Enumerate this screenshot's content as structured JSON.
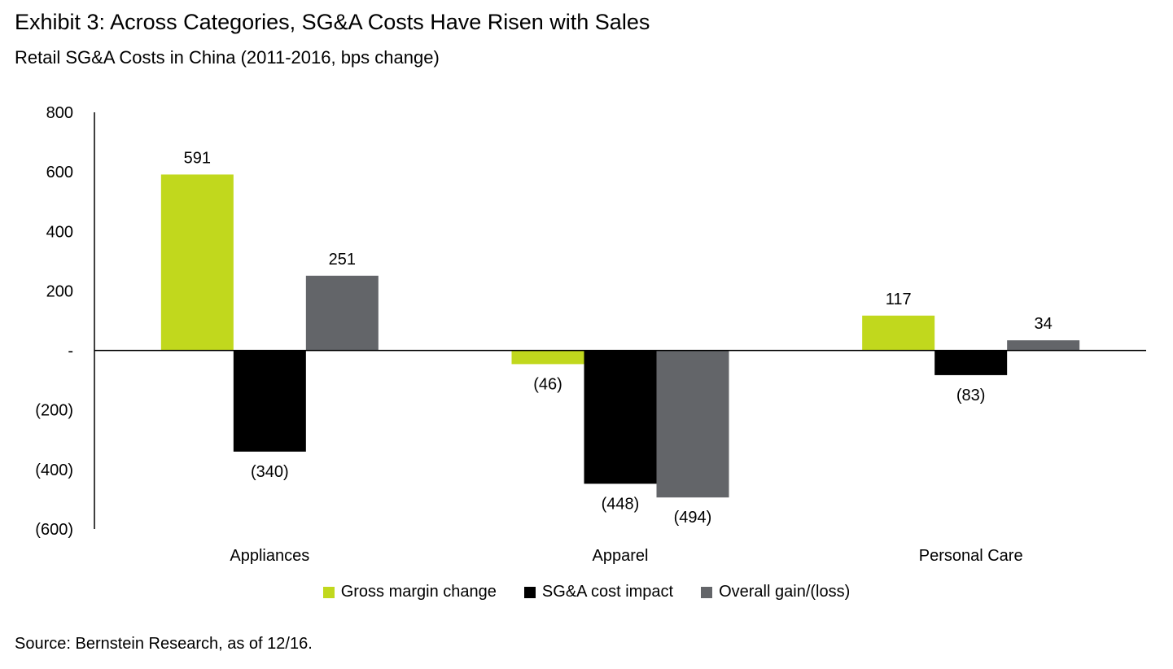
{
  "header": {
    "title": "Exhibit 3: Across Categories, SG&A Costs Have Risen with Sales",
    "subtitle": "Retail SG&A Costs in China (2011-2016, bps change)"
  },
  "footer": {
    "source": "Source: Bernstein Research, as of 12/16."
  },
  "chart_data": {
    "type": "bar",
    "title": "Exhibit 3: Across Categories, SG&A Costs Have Risen with Sales",
    "subtitle": "Retail SG&A Costs in China (2011-2016, bps change)",
    "categories": [
      "Appliances",
      "Apparel",
      "Personal Care"
    ],
    "series": [
      {
        "name": "Gross margin change",
        "color": "#c1d81d",
        "values": [
          591,
          -46,
          117
        ],
        "labels": [
          "591",
          "(46)",
          "117"
        ]
      },
      {
        "name": "SG&A cost impact",
        "color": "#000000",
        "values": [
          -340,
          -448,
          -83
        ],
        "labels": [
          "(340)",
          "(448)",
          "(83)"
        ]
      },
      {
        "name": "Overall gain/(loss)",
        "color": "#636569",
        "values": [
          251,
          -494,
          34
        ],
        "labels": [
          "251",
          "(494)",
          "34"
        ]
      }
    ],
    "yticks": [
      800,
      600,
      400,
      200,
      0,
      -200,
      -400,
      -600
    ],
    "ytick_labels": [
      "800",
      "600",
      "400",
      "200",
      "-",
      "(200)",
      "(400)",
      "(600)"
    ],
    "ylim": [
      -600,
      800
    ],
    "grid": false,
    "legend_position": "bottom"
  }
}
